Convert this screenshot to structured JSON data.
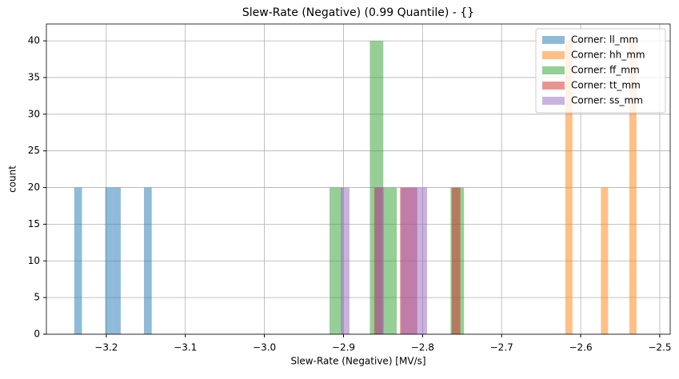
{
  "chart_data": {
    "type": "histogram",
    "title": "Slew-Rate (Negative) (0.99 Quantile) - {}",
    "x_label": "Slew-Rate (Negative) [MV/s]",
    "y_label": "count",
    "xlim": [
      -3.2757,
      -2.4868
    ],
    "ylim": [
      0,
      42.3
    ],
    "xticks": [
      {
        "value": -3.2,
        "label": "−3.2"
      },
      {
        "value": -3.1,
        "label": "−3.1"
      },
      {
        "value": -3.0,
        "label": "−3.0"
      },
      {
        "value": -2.9,
        "label": "−2.9"
      },
      {
        "value": -2.8,
        "label": "−2.8"
      },
      {
        "value": -2.7,
        "label": "−2.7"
      },
      {
        "value": -2.6,
        "label": "−2.6"
      },
      {
        "value": -2.5,
        "label": "−2.5"
      }
    ],
    "yticks": [
      0,
      5,
      10,
      15,
      20,
      25,
      30,
      35,
      40
    ],
    "grid": true,
    "legend": "upper right",
    "opacity": 0.5,
    "series": [
      {
        "name": "Corner: ll_mm",
        "color": "#1f77b4",
        "bins": [
          -3.2405,
          -3.2307,
          -3.2209,
          -3.2111,
          -3.2013,
          -3.1915,
          -3.1817,
          -3.1719,
          -3.1621,
          -3.1523,
          -3.1425
        ],
        "values": [
          20,
          0,
          0,
          0,
          20,
          20,
          0,
          0,
          0,
          20
        ]
      },
      {
        "name": "Corner: hh_mm",
        "color": "#ff7f0e",
        "bins": [
          -2.6194,
          -2.6104,
          -2.6014,
          -2.5924,
          -2.5834,
          -2.5744,
          -2.5654,
          -2.5564,
          -2.5474,
          -2.5384,
          -2.5294
        ],
        "values": [
          40,
          0,
          0,
          0,
          0,
          20,
          0,
          0,
          0,
          40
        ]
      },
      {
        "name": "Corner: ff_mm",
        "color": "#2ca02c",
        "bins": [
          -2.9176,
          -2.9006,
          -2.8836,
          -2.8666,
          -2.8496,
          -2.8326,
          -2.8156,
          -2.7986,
          -2.7816,
          -2.7646,
          -2.7476
        ],
        "values": [
          20,
          0,
          0,
          40,
          20,
          0,
          0,
          0,
          0,
          20
        ]
      },
      {
        "name": "Corner: tt_mm",
        "color": "#d62728",
        "bins": [
          -2.8612,
          -2.8503,
          -2.8394,
          -2.8285,
          -2.8176,
          -2.8067,
          -2.7958,
          -2.7849,
          -2.774,
          -2.7631,
          -2.7522
        ],
        "values": [
          20,
          0,
          0,
          20,
          20,
          0,
          0,
          0,
          0,
          20
        ]
      },
      {
        "name": "Corner: ss_mm",
        "color": "#9467bd",
        "bins": [
          -2.9033,
          -2.8924,
          -2.8815,
          -2.8706,
          -2.8597,
          -2.8488,
          -2.8379,
          -2.827,
          -2.8161,
          -2.8052,
          -2.7943
        ],
        "values": [
          20,
          0,
          0,
          0,
          20,
          0,
          0,
          20,
          20,
          20
        ]
      }
    ]
  }
}
